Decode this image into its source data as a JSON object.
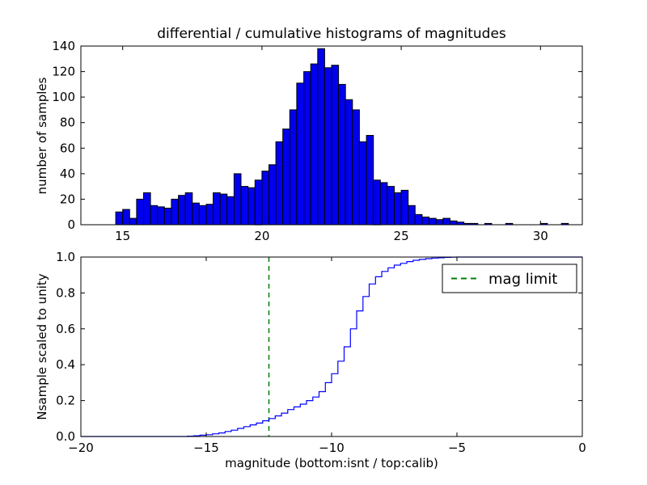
{
  "figure": {
    "title": "differential / cumulative histograms of magnitudes",
    "background": "#ffffff"
  },
  "chart_data": [
    {
      "type": "bar",
      "title": "differential / cumulative histograms of magnitudes",
      "ylabel": "number of samples",
      "xlim": [
        13.5,
        31.5
      ],
      "ylim": [
        0,
        140
      ],
      "xticks": [
        15,
        20,
        25,
        30
      ],
      "xtick_labels": [
        "15",
        "20",
        "25",
        "30"
      ],
      "yticks": [
        0,
        20,
        40,
        60,
        80,
        100,
        120,
        140
      ],
      "ytick_labels": [
        "0",
        "20",
        "40",
        "60",
        "80",
        "100",
        "120",
        "140"
      ],
      "bar_color": "#0000ee",
      "bar_edge_color": "#000000",
      "bin_start": 14.75,
      "bin_width": 0.25,
      "values": [
        10,
        12,
        5,
        20,
        25,
        15,
        14,
        13,
        20,
        23,
        25,
        17,
        15,
        16,
        25,
        24,
        22,
        40,
        30,
        29,
        35,
        42,
        47,
        65,
        75,
        90,
        111,
        120,
        126,
        138,
        123,
        125,
        110,
        98,
        90,
        65,
        70,
        35,
        33,
        30,
        25,
        27,
        15,
        8,
        6,
        5,
        4,
        5,
        3,
        2,
        1,
        1,
        0,
        1,
        0,
        0,
        1,
        0,
        0,
        0,
        0,
        1,
        0,
        0,
        1
      ]
    },
    {
      "type": "line",
      "ylabel": "Nsample scaled to unity",
      "xlabel": "magnitude (bottom:isnt / top:calib)",
      "xlim": [
        -20,
        0
      ],
      "ylim": [
        0,
        1
      ],
      "xticks": [
        -20,
        -15,
        -10,
        -5,
        0
      ],
      "xtick_labels": [
        "−20",
        "−15",
        "−10",
        "−5",
        "0"
      ],
      "yticks": [
        0.0,
        0.2,
        0.4,
        0.6,
        0.8,
        1.0
      ],
      "ytick_labels": [
        "0.0",
        "0.2",
        "0.4",
        "0.6",
        "0.8",
        "1.0"
      ],
      "line_color": "#0000ff",
      "step": true,
      "points": [
        [
          -20,
          0
        ],
        [
          -15.75,
          0.002
        ],
        [
          -15.5,
          0.004
        ],
        [
          -15.25,
          0.007
        ],
        [
          -15,
          0.01
        ],
        [
          -14.75,
          0.015
        ],
        [
          -14.5,
          0.02
        ],
        [
          -14.25,
          0.028
        ],
        [
          -14,
          0.035
        ],
        [
          -13.75,
          0.045
        ],
        [
          -13.5,
          0.055
        ],
        [
          -13.25,
          0.065
        ],
        [
          -13,
          0.075
        ],
        [
          -12.75,
          0.088
        ],
        [
          -12.5,
          0.1
        ],
        [
          -12.25,
          0.115
        ],
        [
          -12,
          0.13
        ],
        [
          -11.75,
          0.15
        ],
        [
          -11.5,
          0.165
        ],
        [
          -11.25,
          0.18
        ],
        [
          -11,
          0.2
        ],
        [
          -10.75,
          0.22
        ],
        [
          -10.5,
          0.25
        ],
        [
          -10.25,
          0.3
        ],
        [
          -10,
          0.35
        ],
        [
          -9.75,
          0.42
        ],
        [
          -9.5,
          0.5
        ],
        [
          -9.25,
          0.6
        ],
        [
          -9,
          0.7
        ],
        [
          -8.75,
          0.78
        ],
        [
          -8.5,
          0.85
        ],
        [
          -8.25,
          0.89
        ],
        [
          -8,
          0.92
        ],
        [
          -7.75,
          0.94
        ],
        [
          -7.5,
          0.955
        ],
        [
          -7.25,
          0.965
        ],
        [
          -7,
          0.975
        ],
        [
          -6.75,
          0.982
        ],
        [
          -6.5,
          0.987
        ],
        [
          -6.25,
          0.991
        ],
        [
          -6,
          0.994
        ],
        [
          -5.75,
          0.996
        ],
        [
          -5.5,
          0.998
        ],
        [
          -5.25,
          0.999
        ],
        [
          -5,
          1.0
        ],
        [
          0,
          1.0
        ]
      ],
      "mag_limit": {
        "x": -12.5,
        "color": "#008000",
        "style": "dashed",
        "label": "mag limit"
      },
      "legend": {
        "position": "upper right",
        "label": "mag limit"
      }
    }
  ]
}
